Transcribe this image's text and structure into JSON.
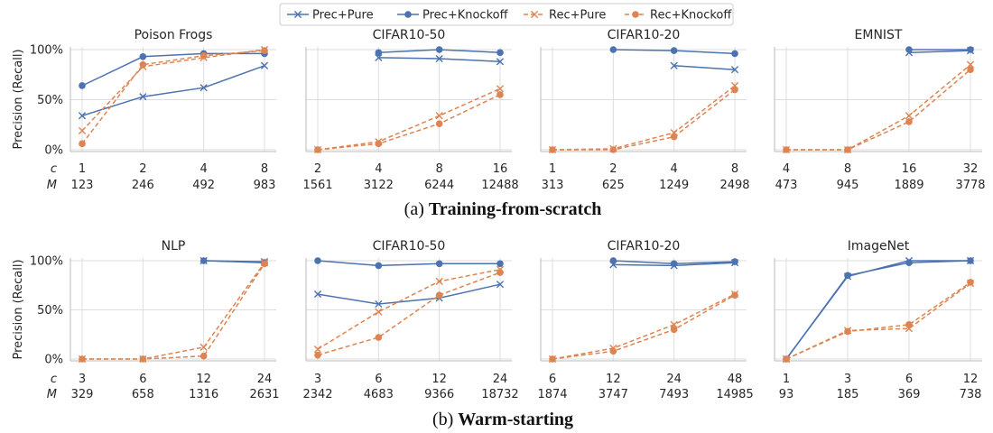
{
  "legend": {
    "entries": [
      {
        "label": "Prec+Pure",
        "color": "#4c72b0",
        "dash": false,
        "marker": "x"
      },
      {
        "label": "Prec+Knockoff",
        "color": "#4c72b0",
        "dash": false,
        "marker": "o"
      },
      {
        "label": "Rec+Pure",
        "color": "#dd8452",
        "dash": true,
        "marker": "x"
      },
      {
        "label": "Rec+Knockoff",
        "color": "#dd8452",
        "dash": true,
        "marker": "o"
      }
    ]
  },
  "ylabel": "Precision (Recall)",
  "yticks": [
    "0%",
    "50%",
    "100%"
  ],
  "row_labels": {
    "c": "c",
    "M": "M"
  },
  "captions": [
    {
      "prefix": "(a) ",
      "bold": "Training-from-scratch"
    },
    {
      "prefix": "(b) ",
      "bold": "Warm-starting"
    }
  ],
  "chart_data": [
    {
      "type": "line",
      "row": 0,
      "title": "Poison Frogs",
      "ylim": [
        0,
        100
      ],
      "c": [
        "1",
        "2",
        "4",
        "8"
      ],
      "M": [
        "123",
        "246",
        "492",
        "983"
      ],
      "series": [
        {
          "name": "Prec+Pure",
          "values": [
            34,
            53,
            62,
            84
          ]
        },
        {
          "name": "Prec+Knockoff",
          "values": [
            64,
            93,
            96,
            96
          ]
        },
        {
          "name": "Rec+Pure",
          "values": [
            19,
            83,
            92,
            100
          ]
        },
        {
          "name": "Rec+Knockoff",
          "values": [
            6,
            85,
            94,
            99
          ]
        }
      ]
    },
    {
      "type": "line",
      "row": 0,
      "title": "CIFAR10-50",
      "ylim": [
        0,
        100
      ],
      "c": [
        "2",
        "4",
        "8",
        "16"
      ],
      "M": [
        "1561",
        "3122",
        "6244",
        "12488"
      ],
      "series": [
        {
          "name": "Prec+Pure",
          "values": [
            null,
            92,
            91,
            88
          ]
        },
        {
          "name": "Prec+Knockoff",
          "values": [
            null,
            97,
            100,
            97
          ]
        },
        {
          "name": "Rec+Pure",
          "values": [
            0,
            8,
            34,
            61
          ]
        },
        {
          "name": "Rec+Knockoff",
          "values": [
            0,
            6,
            26,
            55
          ]
        }
      ]
    },
    {
      "type": "line",
      "row": 0,
      "title": "CIFAR10-20",
      "ylim": [
        0,
        100
      ],
      "c": [
        "1",
        "2",
        "4",
        "8"
      ],
      "M": [
        "313",
        "625",
        "1249",
        "2498"
      ],
      "series": [
        {
          "name": "Prec+Pure",
          "values": [
            null,
            null,
            84,
            80
          ]
        },
        {
          "name": "Prec+Knockoff",
          "values": [
            null,
            100,
            99,
            96
          ]
        },
        {
          "name": "Rec+Pure",
          "values": [
            0,
            1,
            17,
            64
          ]
        },
        {
          "name": "Rec+Knockoff",
          "values": [
            0,
            0,
            13,
            60
          ]
        }
      ]
    },
    {
      "type": "line",
      "row": 0,
      "title": "EMNIST",
      "ylim": [
        0,
        100
      ],
      "c": [
        "4",
        "8",
        "16",
        "32"
      ],
      "M": [
        "473",
        "945",
        "1889",
        "3778"
      ],
      "series": [
        {
          "name": "Prec+Pure",
          "values": [
            null,
            null,
            97,
            99
          ]
        },
        {
          "name": "Prec+Knockoff",
          "values": [
            null,
            null,
            100,
            100
          ]
        },
        {
          "name": "Rec+Pure",
          "values": [
            0,
            0,
            34,
            85
          ]
        },
        {
          "name": "Rec+Knockoff",
          "values": [
            0,
            0,
            28,
            80
          ]
        }
      ]
    },
    {
      "type": "line",
      "row": 1,
      "title": "NLP",
      "ylim": [
        0,
        100
      ],
      "c": [
        "3",
        "6",
        "12",
        "24"
      ],
      "M": [
        "329",
        "658",
        "1316",
        "2631"
      ],
      "series": [
        {
          "name": "Prec+Pure",
          "values": [
            null,
            null,
            100,
            99
          ]
        },
        {
          "name": "Prec+Knockoff",
          "values": [
            null,
            null,
            100,
            98
          ]
        },
        {
          "name": "Rec+Pure",
          "values": [
            0,
            0,
            12,
            98
          ]
        },
        {
          "name": "Rec+Knockoff",
          "values": [
            0,
            0,
            3,
            97
          ]
        }
      ]
    },
    {
      "type": "line",
      "row": 1,
      "title": "CIFAR10-50",
      "ylim": [
        0,
        100
      ],
      "c": [
        "3",
        "6",
        "12",
        "24"
      ],
      "M": [
        "2342",
        "4683",
        "9366",
        "18732"
      ],
      "series": [
        {
          "name": "Prec+Pure",
          "values": [
            66,
            56,
            62,
            76
          ]
        },
        {
          "name": "Prec+Knockoff",
          "values": [
            100,
            95,
            97,
            97
          ]
        },
        {
          "name": "Rec+Pure",
          "values": [
            10,
            48,
            79,
            91
          ]
        },
        {
          "name": "Rec+Knockoff",
          "values": [
            4,
            22,
            65,
            88
          ]
        }
      ]
    },
    {
      "type": "line",
      "row": 1,
      "title": "CIFAR10-20",
      "ylim": [
        0,
        100
      ],
      "c": [
        "6",
        "12",
        "24",
        "48"
      ],
      "M": [
        "1874",
        "3747",
        "7493",
        "14985"
      ],
      "series": [
        {
          "name": "Prec+Pure",
          "values": [
            null,
            96,
            95,
            98
          ]
        },
        {
          "name": "Prec+Knockoff",
          "values": [
            null,
            100,
            97,
            99
          ]
        },
        {
          "name": "Rec+Pure",
          "values": [
            0,
            11,
            35,
            66
          ]
        },
        {
          "name": "Rec+Knockoff",
          "values": [
            0,
            8,
            30,
            65
          ]
        }
      ]
    },
    {
      "type": "line",
      "row": 1,
      "title": "ImageNet",
      "ylim": [
        0,
        100
      ],
      "c": [
        "1",
        "3",
        "6",
        "12"
      ],
      "M": [
        "93",
        "185",
        "369",
        "738"
      ],
      "series": [
        {
          "name": "Prec+Pure",
          "values": [
            0,
            84,
            100,
            100
          ]
        },
        {
          "name": "Prec+Knockoff",
          "values": [
            0,
            85,
            98,
            100
          ]
        },
        {
          "name": "Rec+Pure",
          "values": [
            0,
            29,
            31,
            77
          ]
        },
        {
          "name": "Rec+Knockoff",
          "values": [
            0,
            28,
            35,
            78
          ]
        }
      ]
    }
  ]
}
